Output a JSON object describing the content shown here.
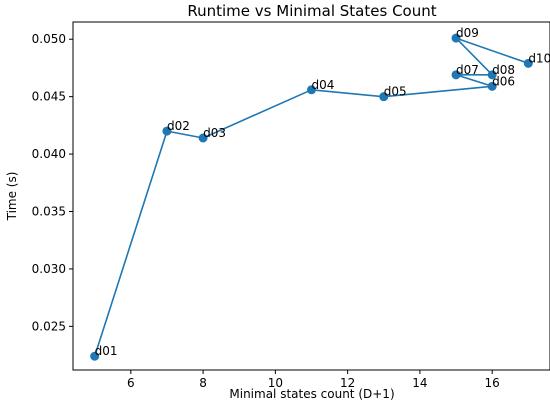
{
  "chart_data": {
    "type": "line",
    "title": "Runtime vs Minimal States Count",
    "xlabel": "Minimal states count (D+1)",
    "ylabel": "Time (s)",
    "xlim": [
      4.4,
      17.6
    ],
    "ylim": [
      0.0212,
      0.0515
    ],
    "xticks": [
      6,
      8,
      10,
      12,
      14,
      16
    ],
    "yticks": [
      0.025,
      0.03,
      0.035,
      0.04,
      0.045,
      0.05
    ],
    "xtick_labels": [
      "6",
      "8",
      "10",
      "12",
      "14",
      "16"
    ],
    "ytick_labels": [
      "0.025",
      "0.030",
      "0.035",
      "0.040",
      "0.045",
      "0.050"
    ],
    "grid": false,
    "series": [
      {
        "color": "#1f77b4",
        "marker": "circle",
        "points": [
          {
            "label": "d01",
            "x": 5,
            "y": 0.0224
          },
          {
            "label": "d02",
            "x": 7,
            "y": 0.042
          },
          {
            "label": "d03",
            "x": 8,
            "y": 0.0414
          },
          {
            "label": "d04",
            "x": 11,
            "y": 0.0456
          },
          {
            "label": "d05",
            "x": 13,
            "y": 0.045
          },
          {
            "label": "d06",
            "x": 16,
            "y": 0.0459
          },
          {
            "label": "d07",
            "x": 15,
            "y": 0.0469
          },
          {
            "label": "d08",
            "x": 16,
            "y": 0.0469
          },
          {
            "label": "d09",
            "x": 15,
            "y": 0.0501
          },
          {
            "label": "d10",
            "x": 17,
            "y": 0.0479
          }
        ]
      }
    ]
  }
}
